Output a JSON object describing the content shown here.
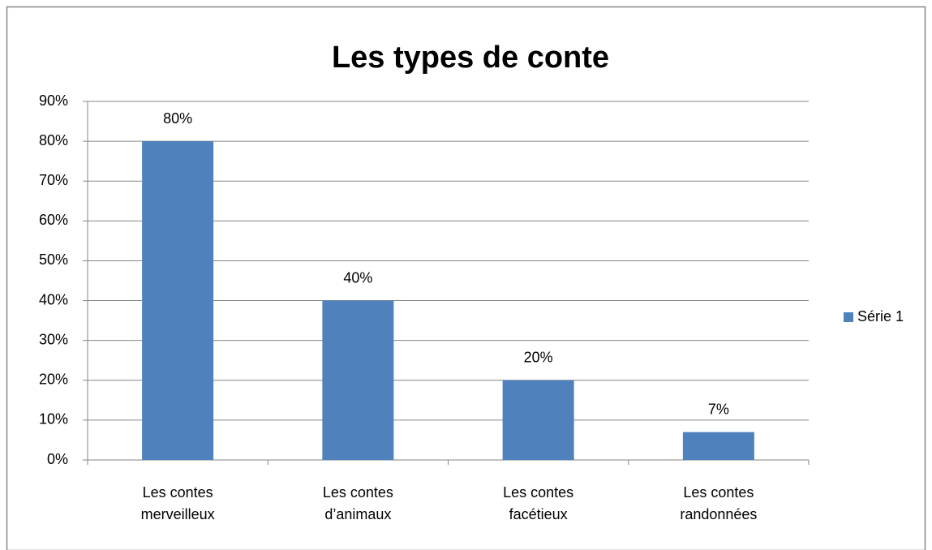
{
  "chart_data": {
    "type": "bar",
    "title": "Les types de conte",
    "categories": [
      "Les contes merveilleux",
      "Les contes d’animaux",
      "Les contes facétieux",
      "Les contes randonnées"
    ],
    "series": [
      {
        "name": "Série 1",
        "color": "#4f81bd",
        "values": [
          80,
          40,
          20,
          7
        ],
        "value_labels": [
          "80%",
          "40%",
          "20%",
          "7%"
        ]
      }
    ],
    "ylim": [
      0,
      90
    ],
    "yticks": [
      {
        "value": 0,
        "label": "0%"
      },
      {
        "value": 10,
        "label": "10%"
      },
      {
        "value": 20,
        "label": "20%"
      },
      {
        "value": 30,
        "label": "30%"
      },
      {
        "value": 40,
        "label": "40%"
      },
      {
        "value": 50,
        "label": "50%"
      },
      {
        "value": 60,
        "label": "60%"
      },
      {
        "value": 70,
        "label": "70%"
      },
      {
        "value": 80,
        "label": "80%"
      },
      {
        "value": 90,
        "label": "90%"
      }
    ],
    "grid": true,
    "legend": "right"
  }
}
